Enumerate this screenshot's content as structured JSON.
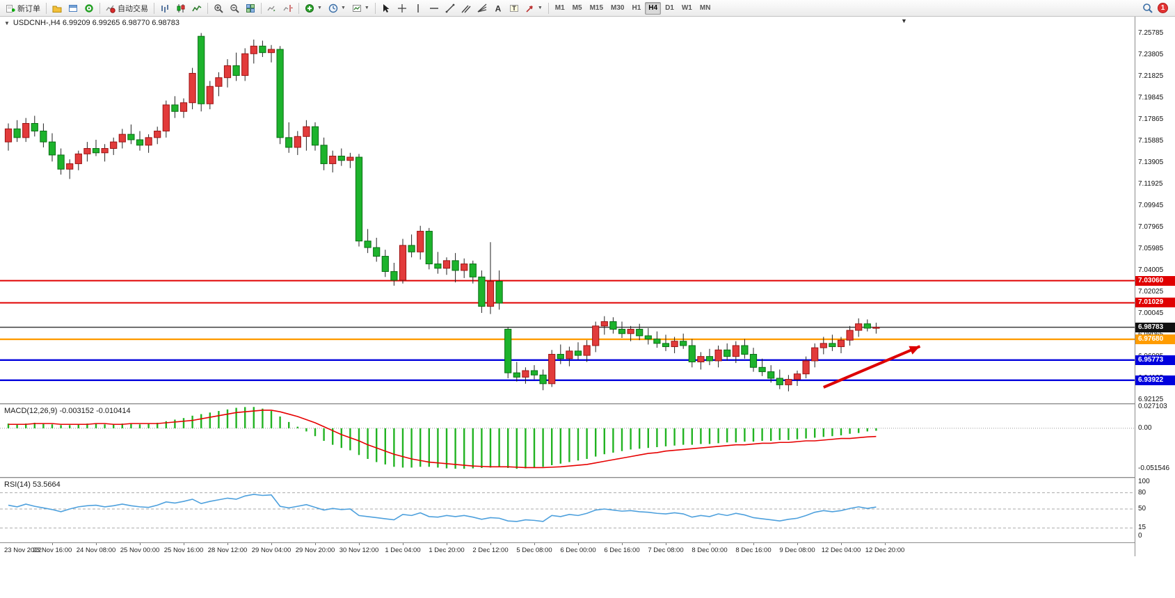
{
  "toolbar": {
    "new_order": "新订单",
    "auto_trading": "自动交易",
    "timeframes": [
      "M1",
      "M5",
      "M15",
      "M30",
      "H1",
      "H4",
      "D1",
      "W1",
      "MN"
    ],
    "active_timeframe": "H4",
    "notification_count": "1"
  },
  "chart_data": [
    {
      "type": "candlestick",
      "title": "USDCNH-,H4  6.99209 6.99265 6.98770 6.98783",
      "symbol": "USDCNH-",
      "timeframe": "H4",
      "open": 6.99209,
      "high": 6.99265,
      "low": 6.9877,
      "close": 6.98783,
      "ylim": [
        6.918,
        7.273
      ],
      "up_color": "#e23b3b",
      "up_border": "#9c1313",
      "down_color": "#1db32c",
      "down_border": "#0a6e14",
      "wick_color": "#222222",
      "y_ticks": [
        "7.25785",
        "7.23805",
        "7.21825",
        "7.19845",
        "7.17865",
        "7.15885",
        "7.13905",
        "7.11925",
        "7.09945",
        "7.07965",
        "7.05985",
        "7.04005",
        "7.02025",
        "7.00045",
        "6.98065",
        "6.96085",
        "6.94105",
        "6.92125"
      ],
      "lines": [
        {
          "price": 7.0306,
          "label": "7.03060",
          "color": "#e00000",
          "width": 2
        },
        {
          "price": 7.01029,
          "label": "7.01029",
          "color": "#e00000",
          "width": 2
        },
        {
          "price": 6.98783,
          "label": "6.98783",
          "color": "#3c3c3c",
          "width": 1.4,
          "tag": "#111111"
        },
        {
          "price": 6.9768,
          "label": "6.97680",
          "color": "#ff9c00",
          "width": 2.4
        },
        {
          "price": 6.95773,
          "label": "6.95773",
          "color": "#0000dd",
          "width": 2.4
        },
        {
          "price": 6.93922,
          "label": "6.93922",
          "color": "#0000dd",
          "width": 2.4
        }
      ],
      "arrow": {
        "from": {
          "bar": 93,
          "price": 6.9327
        },
        "to": {
          "bar": 104,
          "price": 6.9703
        },
        "color": "#dd0000"
      },
      "x_labels": [
        "23 Nov 2022",
        "23 Nov 16:00",
        "24 Nov 08:00",
        "25 Nov 00:00",
        "25 Nov 16:00",
        "28 Nov 12:00",
        "29 Nov 04:00",
        "29 Nov 20:00",
        "30 Nov 12:00",
        "1 Dec 04:00",
        "1 Dec 20:00",
        "2 Dec 12:00",
        "5 Dec 08:00",
        "6 Dec 00:00",
        "6 Dec 16:00",
        "7 Dec 08:00",
        "8 Dec 00:00",
        "8 Dec 16:00",
        "9 Dec 08:00",
        "12 Dec 04:00",
        "12 Dec 20:00"
      ],
      "label_every_n_bars": 5,
      "ohlc": [
        [
          7.158,
          7.175,
          7.15,
          7.17
        ],
        [
          7.17,
          7.178,
          7.158,
          7.162
        ],
        [
          7.162,
          7.18,
          7.158,
          7.175
        ],
        [
          7.175,
          7.182,
          7.163,
          7.168
        ],
        [
          7.168,
          7.175,
          7.153,
          7.158
        ],
        [
          7.158,
          7.166,
          7.14,
          7.146
        ],
        [
          7.146,
          7.152,
          7.128,
          7.133
        ],
        [
          7.133,
          7.142,
          7.124,
          7.138
        ],
        [
          7.138,
          7.15,
          7.132,
          7.147
        ],
        [
          7.147,
          7.158,
          7.14,
          7.152
        ],
        [
          7.152,
          7.16,
          7.145,
          7.148
        ],
        [
          7.148,
          7.156,
          7.14,
          7.152
        ],
        [
          7.152,
          7.162,
          7.146,
          7.158
        ],
        [
          7.158,
          7.17,
          7.152,
          7.165
        ],
        [
          7.165,
          7.174,
          7.156,
          7.16
        ],
        [
          7.16,
          7.168,
          7.15,
          7.155
        ],
        [
          7.155,
          7.165,
          7.148,
          7.162
        ],
        [
          7.162,
          7.172,
          7.156,
          7.168
        ],
        [
          7.168,
          7.196,
          7.162,
          7.192
        ],
        [
          7.192,
          7.2,
          7.18,
          7.186
        ],
        [
          7.186,
          7.198,
          7.18,
          7.194
        ],
        [
          7.194,
          7.226,
          7.188,
          7.221
        ],
        [
          7.255,
          7.258,
          7.186,
          7.193
        ],
        [
          7.193,
          7.214,
          7.188,
          7.209
        ],
        [
          7.209,
          7.222,
          7.2,
          7.217
        ],
        [
          7.217,
          7.234,
          7.208,
          7.228
        ],
        [
          7.228,
          7.24,
          7.214,
          7.219
        ],
        [
          7.219,
          7.244,
          7.214,
          7.239
        ],
        [
          7.239,
          7.252,
          7.23,
          7.246
        ],
        [
          7.246,
          7.251,
          7.236,
          7.24
        ],
        [
          7.24,
          7.247,
          7.231,
          7.243
        ],
        [
          7.243,
          7.246,
          7.156,
          7.162
        ],
        [
          7.162,
          7.176,
          7.148,
          7.153
        ],
        [
          7.153,
          7.168,
          7.146,
          7.163
        ],
        [
          7.163,
          7.178,
          7.15,
          7.172
        ],
        [
          7.172,
          7.176,
          7.15,
          7.155
        ],
        [
          7.155,
          7.162,
          7.132,
          7.138
        ],
        [
          7.138,
          7.15,
          7.13,
          7.145
        ],
        [
          7.145,
          7.152,
          7.136,
          7.141
        ],
        [
          7.141,
          7.148,
          7.134,
          7.144
        ],
        [
          7.144,
          7.147,
          7.062,
          7.067
        ],
        [
          7.067,
          7.078,
          7.056,
          7.061
        ],
        [
          7.061,
          7.07,
          7.048,
          7.053
        ],
        [
          7.053,
          7.059,
          7.034,
          7.039
        ],
        [
          7.039,
          7.047,
          7.026,
          7.031
        ],
        [
          7.031,
          7.069,
          7.028,
          7.063
        ],
        [
          7.063,
          7.073,
          7.052,
          7.057
        ],
        [
          7.057,
          7.081,
          7.05,
          7.076
        ],
        [
          7.076,
          7.079,
          7.041,
          7.046
        ],
        [
          7.046,
          7.057,
          7.037,
          7.042
        ],
        [
          7.042,
          7.052,
          7.036,
          7.049
        ],
        [
          7.049,
          7.056,
          7.029,
          7.04
        ],
        [
          7.04,
          7.051,
          7.033,
          7.046
        ],
        [
          7.046,
          7.049,
          7.028,
          7.034
        ],
        [
          7.034,
          7.04,
          7.001,
          7.007
        ],
        [
          7.007,
          7.066,
          7.0,
          7.03
        ],
        [
          7.03,
          7.04,
          7.004,
          7.01
        ],
        [
          6.986,
          6.988,
          6.941,
          6.946
        ],
        [
          6.946,
          6.956,
          6.938,
          6.942
        ],
        [
          6.942,
          6.951,
          6.936,
          6.948
        ],
        [
          6.948,
          6.953,
          6.94,
          6.944
        ],
        [
          6.944,
          6.949,
          6.93,
          6.936
        ],
        [
          6.936,
          6.967,
          6.933,
          6.963
        ],
        [
          6.963,
          6.972,
          6.954,
          6.959
        ],
        [
          6.959,
          6.97,
          6.952,
          6.966
        ],
        [
          6.966,
          6.974,
          6.958,
          6.962
        ],
        [
          6.962,
          6.976,
          6.956,
          6.971
        ],
        [
          6.971,
          6.993,
          6.965,
          6.989
        ],
        [
          6.989,
          6.998,
          6.981,
          6.993
        ],
        [
          6.993,
          6.997,
          6.982,
          6.986
        ],
        [
          6.986,
          6.993,
          6.978,
          6.982
        ],
        [
          6.982,
          6.989,
          6.975,
          6.986
        ],
        [
          6.986,
          6.991,
          6.976,
          6.98
        ],
        [
          6.98,
          6.987,
          6.972,
          6.977
        ],
        [
          6.977,
          6.984,
          6.969,
          6.973
        ],
        [
          6.973,
          6.981,
          6.966,
          6.97
        ],
        [
          6.97,
          6.979,
          6.964,
          6.975
        ],
        [
          6.975,
          6.982,
          6.968,
          6.971
        ],
        [
          6.971,
          6.977,
          6.951,
          6.956
        ],
        [
          6.956,
          6.965,
          6.949,
          6.961
        ],
        [
          6.961,
          6.968,
          6.953,
          6.957
        ],
        [
          6.957,
          6.971,
          6.951,
          6.967
        ],
        [
          6.967,
          6.973,
          6.957,
          6.961
        ],
        [
          6.961,
          6.975,
          6.955,
          6.971
        ],
        [
          6.971,
          6.977,
          6.959,
          6.963
        ],
        [
          6.963,
          6.969,
          6.947,
          6.951
        ],
        [
          6.951,
          6.959,
          6.943,
          6.947
        ],
        [
          6.947,
          6.953,
          6.937,
          6.941
        ],
        [
          6.941,
          6.949,
          6.931,
          6.935
        ],
        [
          6.935,
          6.944,
          6.929,
          6.94
        ],
        [
          6.94,
          6.948,
          6.934,
          6.945
        ],
        [
          6.945,
          6.961,
          6.941,
          6.957
        ],
        [
          6.957,
          6.973,
          6.951,
          6.969
        ],
        [
          6.969,
          6.979,
          6.963,
          6.973
        ],
        [
          6.973,
          6.981,
          6.966,
          6.97
        ],
        [
          6.97,
          6.979,
          6.964,
          6.976
        ],
        [
          6.976,
          6.989,
          6.971,
          6.985
        ],
        [
          6.985,
          6.996,
          6.979,
          6.991
        ],
        [
          6.991,
          6.995,
          6.984,
          6.987
        ],
        [
          6.987,
          6.992,
          6.982,
          6.98783
        ]
      ]
    },
    {
      "type": "bar",
      "name": "MACD",
      "label": "MACD(12,26,9) -0.003152 -0.010414",
      "value": -0.003152,
      "signal_value": -0.010414,
      "ylim": [
        -0.062,
        0.03
      ],
      "bar_color": "#22b322",
      "signal_color": "#e60000",
      "y_ticks": [
        {
          "v": 0.027103,
          "t": "0.027103"
        },
        {
          "v": 0.0,
          "t": "0.00"
        },
        {
          "v": -0.051546,
          "t": "-0.051546"
        }
      ],
      "values": [
        0.006,
        0.005,
        0.006,
        0.007,
        0.006,
        0.005,
        0.004,
        0.004,
        0.005,
        0.006,
        0.006,
        0.005,
        0.005,
        0.006,
        0.006,
        0.005,
        0.006,
        0.007,
        0.009,
        0.011,
        0.013,
        0.016,
        0.018,
        0.02,
        0.022,
        0.024,
        0.026,
        0.027,
        0.027103,
        0.025,
        0.022,
        0.015,
        0.008,
        0.002,
        -0.004,
        -0.01,
        -0.016,
        -0.021,
        -0.025,
        -0.028,
        -0.034,
        -0.039,
        -0.043,
        -0.046,
        -0.049,
        -0.05,
        -0.05,
        -0.049,
        -0.049,
        -0.05,
        -0.051,
        -0.0515,
        -0.0515,
        -0.051,
        -0.0505,
        -0.05,
        -0.0495,
        -0.0505,
        -0.051546,
        -0.051,
        -0.05,
        -0.049,
        -0.047,
        -0.045,
        -0.043,
        -0.041,
        -0.039,
        -0.036,
        -0.033,
        -0.031,
        -0.029,
        -0.027,
        -0.026,
        -0.025,
        -0.024,
        -0.023,
        -0.022,
        -0.021,
        -0.021,
        -0.02,
        -0.02,
        -0.019,
        -0.018,
        -0.018,
        -0.017,
        -0.017,
        -0.016,
        -0.016,
        -0.015,
        -0.015,
        -0.014,
        -0.013,
        -0.012,
        -0.011,
        -0.01,
        -0.009,
        -0.007,
        -0.006,
        -0.004,
        -0.003152
      ],
      "signal": [
        0.005,
        0.005,
        0.005,
        0.006,
        0.006,
        0.006,
        0.005,
        0.005,
        0.005,
        0.005,
        0.006,
        0.006,
        0.005,
        0.005,
        0.006,
        0.006,
        0.006,
        0.006,
        0.007,
        0.008,
        0.009,
        0.01,
        0.012,
        0.014,
        0.016,
        0.018,
        0.02,
        0.021,
        0.022,
        0.023,
        0.023,
        0.021,
        0.018,
        0.015,
        0.011,
        0.007,
        0.002,
        -0.003,
        -0.008,
        -0.012,
        -0.016,
        -0.021,
        -0.025,
        -0.029,
        -0.033,
        -0.036,
        -0.039,
        -0.041,
        -0.043,
        -0.044,
        -0.045,
        -0.046,
        -0.047,
        -0.048,
        -0.0485,
        -0.049,
        -0.049,
        -0.049,
        -0.0495,
        -0.05,
        -0.05,
        -0.05,
        -0.0495,
        -0.049,
        -0.048,
        -0.047,
        -0.046,
        -0.044,
        -0.042,
        -0.04,
        -0.038,
        -0.036,
        -0.034,
        -0.032,
        -0.031,
        -0.029,
        -0.028,
        -0.027,
        -0.026,
        -0.025,
        -0.024,
        -0.023,
        -0.022,
        -0.021,
        -0.021,
        -0.02,
        -0.019,
        -0.019,
        -0.018,
        -0.018,
        -0.017,
        -0.016,
        -0.016,
        -0.015,
        -0.014,
        -0.013,
        -0.013,
        -0.012,
        -0.011,
        -0.010414
      ]
    },
    {
      "type": "line",
      "name": "RSI",
      "label": "RSI(14) 53.5664",
      "value": 53.5664,
      "ylim": [
        0,
        100
      ],
      "line_color": "#4da0dd",
      "levels": [
        80,
        50,
        15
      ],
      "y_ticks": [
        "100",
        "80",
        "50",
        "15",
        "0"
      ],
      "values": [
        57,
        54,
        59,
        55,
        52,
        49,
        45,
        50,
        54,
        56,
        57,
        54,
        56,
        59,
        56,
        54,
        53,
        57,
        63,
        61,
        64,
        68,
        60,
        64,
        67,
        70,
        68,
        74,
        77,
        75,
        76,
        55,
        52,
        55,
        58,
        53,
        48,
        51,
        49,
        50,
        38,
        36,
        34,
        32,
        30,
        40,
        38,
        43,
        36,
        35,
        38,
        36,
        38,
        35,
        31,
        34,
        33,
        28,
        27,
        30,
        29,
        27,
        38,
        36,
        40,
        38,
        42,
        48,
        50,
        48,
        46,
        47,
        45,
        44,
        42,
        41,
        43,
        41,
        35,
        38,
        36,
        41,
        38,
        42,
        39,
        34,
        32,
        30,
        28,
        31,
        33,
        38,
        44,
        47,
        45,
        47,
        51,
        54,
        51,
        53.5664
      ]
    }
  ]
}
